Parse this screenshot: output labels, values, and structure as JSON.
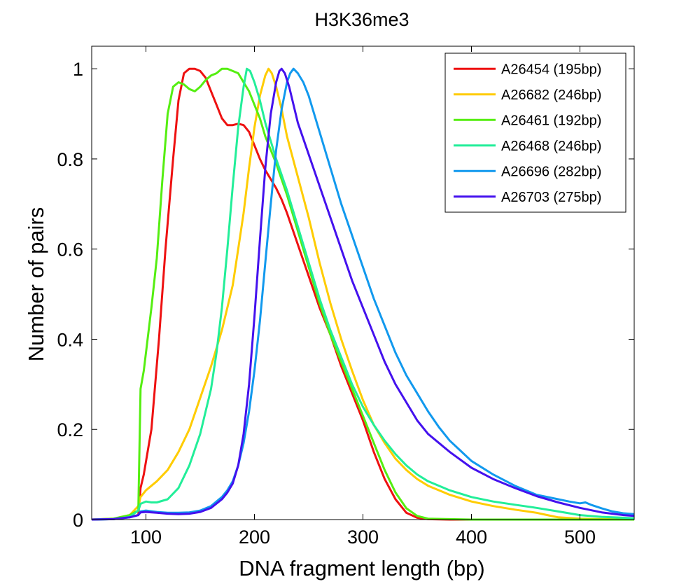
{
  "chart_data": {
    "type": "line",
    "title": "H3K36me3",
    "xlabel": "DNA fragment length (bp)",
    "ylabel": "Number of pairs",
    "xlim": [
      50,
      550
    ],
    "ylim": [
      0,
      1.05
    ],
    "xticks": [
      100,
      200,
      300,
      400,
      500
    ],
    "xtick_labels": [
      "100",
      "200",
      "300",
      "400",
      "500"
    ],
    "yticks": [
      0,
      0.2,
      0.4,
      0.6,
      0.8,
      1
    ],
    "ytick_labels": [
      "0",
      "0.2",
      "0.4",
      "0.6",
      "0.8",
      "1"
    ],
    "grid": false,
    "legend_position": "top-right",
    "series": [
      {
        "name": "A26454 (195bp)",
        "color": "#ee1111",
        "points": [
          [
            50,
            0
          ],
          [
            70,
            0.002
          ],
          [
            85,
            0.006
          ],
          [
            93,
            0.01
          ],
          [
            95,
            0.07
          ],
          [
            98,
            0.1
          ],
          [
            105,
            0.2
          ],
          [
            112,
            0.4
          ],
          [
            118,
            0.6
          ],
          [
            125,
            0.8
          ],
          [
            130,
            0.93
          ],
          [
            135,
            0.99
          ],
          [
            140,
            1.0
          ],
          [
            145,
            1.0
          ],
          [
            150,
            0.995
          ],
          [
            155,
            0.98
          ],
          [
            160,
            0.95
          ],
          [
            165,
            0.92
          ],
          [
            170,
            0.89
          ],
          [
            175,
            0.875
          ],
          [
            180,
            0.875
          ],
          [
            185,
            0.878
          ],
          [
            190,
            0.875
          ],
          [
            195,
            0.86
          ],
          [
            200,
            0.83
          ],
          [
            205,
            0.8
          ],
          [
            210,
            0.775
          ],
          [
            215,
            0.755
          ],
          [
            220,
            0.735
          ],
          [
            225,
            0.71
          ],
          [
            230,
            0.68
          ],
          [
            240,
            0.61
          ],
          [
            250,
            0.54
          ],
          [
            260,
            0.47
          ],
          [
            270,
            0.41
          ],
          [
            280,
            0.34
          ],
          [
            290,
            0.28
          ],
          [
            300,
            0.22
          ],
          [
            310,
            0.15
          ],
          [
            320,
            0.09
          ],
          [
            330,
            0.045
          ],
          [
            340,
            0.015
          ],
          [
            350,
            0.004
          ],
          [
            360,
            0.001
          ],
          [
            380,
            0
          ],
          [
            550,
            0
          ]
        ]
      },
      {
        "name": "A26682 (246bp)",
        "color": "#ffcc00",
        "points": [
          [
            50,
            0
          ],
          [
            70,
            0.002
          ],
          [
            85,
            0.01
          ],
          [
            93,
            0.03
          ],
          [
            95,
            0.05
          ],
          [
            100,
            0.065
          ],
          [
            110,
            0.085
          ],
          [
            120,
            0.11
          ],
          [
            130,
            0.15
          ],
          [
            140,
            0.2
          ],
          [
            150,
            0.27
          ],
          [
            160,
            0.34
          ],
          [
            170,
            0.42
          ],
          [
            175,
            0.47
          ],
          [
            180,
            0.52
          ],
          [
            185,
            0.6
          ],
          [
            190,
            0.68
          ],
          [
            195,
            0.78
          ],
          [
            200,
            0.87
          ],
          [
            205,
            0.94
          ],
          [
            210,
            0.985
          ],
          [
            213,
            1.0
          ],
          [
            216,
            0.99
          ],
          [
            220,
            0.96
          ],
          [
            225,
            0.91
          ],
          [
            230,
            0.85
          ],
          [
            240,
            0.76
          ],
          [
            250,
            0.67
          ],
          [
            260,
            0.57
          ],
          [
            270,
            0.48
          ],
          [
            280,
            0.4
          ],
          [
            290,
            0.33
          ],
          [
            300,
            0.265
          ],
          [
            310,
            0.21
          ],
          [
            320,
            0.17
          ],
          [
            330,
            0.135
          ],
          [
            340,
            0.11
          ],
          [
            350,
            0.09
          ],
          [
            360,
            0.075
          ],
          [
            380,
            0.055
          ],
          [
            400,
            0.04
          ],
          [
            420,
            0.03
          ],
          [
            440,
            0.022
          ],
          [
            460,
            0.015
          ],
          [
            470,
            0.01
          ],
          [
            480,
            0.005
          ],
          [
            500,
            0.002
          ],
          [
            520,
            0.001
          ],
          [
            550,
            0
          ]
        ]
      },
      {
        "name": "A26461 (192bp)",
        "color": "#55ee11",
        "points": [
          [
            50,
            0
          ],
          [
            70,
            0.002
          ],
          [
            85,
            0.01
          ],
          [
            93,
            0.02
          ],
          [
            95,
            0.29
          ],
          [
            98,
            0.33
          ],
          [
            105,
            0.47
          ],
          [
            110,
            0.58
          ],
          [
            115,
            0.75
          ],
          [
            120,
            0.9
          ],
          [
            125,
            0.96
          ],
          [
            130,
            0.97
          ],
          [
            135,
            0.965
          ],
          [
            140,
            0.955
          ],
          [
            145,
            0.95
          ],
          [
            150,
            0.96
          ],
          [
            155,
            0.975
          ],
          [
            160,
            0.985
          ],
          [
            165,
            0.99
          ],
          [
            170,
            1.0
          ],
          [
            175,
            1.0
          ],
          [
            180,
            0.995
          ],
          [
            185,
            0.99
          ],
          [
            190,
            0.97
          ],
          [
            195,
            0.95
          ],
          [
            200,
            0.92
          ],
          [
            205,
            0.89
          ],
          [
            210,
            0.85
          ],
          [
            220,
            0.79
          ],
          [
            230,
            0.72
          ],
          [
            240,
            0.64
          ],
          [
            250,
            0.56
          ],
          [
            260,
            0.48
          ],
          [
            270,
            0.41
          ],
          [
            280,
            0.35
          ],
          [
            290,
            0.29
          ],
          [
            300,
            0.23
          ],
          [
            310,
            0.17
          ],
          [
            320,
            0.11
          ],
          [
            330,
            0.06
          ],
          [
            340,
            0.025
          ],
          [
            350,
            0.008
          ],
          [
            360,
            0.002
          ],
          [
            380,
            0.001
          ],
          [
            400,
            0
          ],
          [
            550,
            0
          ]
        ]
      },
      {
        "name": "A26468 (246bp)",
        "color": "#22ee99",
        "points": [
          [
            50,
            0
          ],
          [
            70,
            0.001
          ],
          [
            85,
            0.006
          ],
          [
            93,
            0.02
          ],
          [
            95,
            0.035
          ],
          [
            100,
            0.04
          ],
          [
            105,
            0.038
          ],
          [
            110,
            0.038
          ],
          [
            120,
            0.045
          ],
          [
            130,
            0.07
          ],
          [
            140,
            0.12
          ],
          [
            150,
            0.19
          ],
          [
            160,
            0.29
          ],
          [
            165,
            0.37
          ],
          [
            170,
            0.47
          ],
          [
            175,
            0.6
          ],
          [
            180,
            0.74
          ],
          [
            185,
            0.87
          ],
          [
            190,
            0.96
          ],
          [
            193,
            1.0
          ],
          [
            196,
            0.995
          ],
          [
            200,
            0.97
          ],
          [
            205,
            0.93
          ],
          [
            210,
            0.88
          ],
          [
            220,
            0.8
          ],
          [
            230,
            0.73
          ],
          [
            240,
            0.65
          ],
          [
            250,
            0.57
          ],
          [
            260,
            0.49
          ],
          [
            270,
            0.42
          ],
          [
            280,
            0.36
          ],
          [
            290,
            0.3
          ],
          [
            300,
            0.25
          ],
          [
            310,
            0.21
          ],
          [
            320,
            0.175
          ],
          [
            330,
            0.145
          ],
          [
            340,
            0.12
          ],
          [
            350,
            0.1
          ],
          [
            360,
            0.085
          ],
          [
            380,
            0.065
          ],
          [
            400,
            0.05
          ],
          [
            420,
            0.04
          ],
          [
            440,
            0.033
          ],
          [
            460,
            0.026
          ],
          [
            480,
            0.018
          ],
          [
            500,
            0.01
          ],
          [
            520,
            0.006
          ],
          [
            550,
            0.003
          ]
        ]
      },
      {
        "name": "A26696 (282bp)",
        "color": "#1199ee",
        "points": [
          [
            50,
            0
          ],
          [
            70,
            0.001
          ],
          [
            85,
            0.005
          ],
          [
            93,
            0.01
          ],
          [
            95,
            0.018
          ],
          [
            100,
            0.02
          ],
          [
            110,
            0.017
          ],
          [
            120,
            0.015
          ],
          [
            130,
            0.015
          ],
          [
            140,
            0.016
          ],
          [
            150,
            0.02
          ],
          [
            160,
            0.03
          ],
          [
            170,
            0.05
          ],
          [
            175,
            0.065
          ],
          [
            180,
            0.085
          ],
          [
            185,
            0.12
          ],
          [
            190,
            0.17
          ],
          [
            195,
            0.24
          ],
          [
            200,
            0.33
          ],
          [
            205,
            0.44
          ],
          [
            210,
            0.57
          ],
          [
            215,
            0.7
          ],
          [
            220,
            0.82
          ],
          [
            225,
            0.91
          ],
          [
            230,
            0.97
          ],
          [
            233,
            0.99
          ],
          [
            236,
            1.0
          ],
          [
            240,
            0.99
          ],
          [
            245,
            0.97
          ],
          [
            250,
            0.94
          ],
          [
            260,
            0.86
          ],
          [
            270,
            0.78
          ],
          [
            280,
            0.7
          ],
          [
            290,
            0.63
          ],
          [
            300,
            0.56
          ],
          [
            310,
            0.49
          ],
          [
            320,
            0.43
          ],
          [
            330,
            0.37
          ],
          [
            340,
            0.32
          ],
          [
            350,
            0.28
          ],
          [
            360,
            0.24
          ],
          [
            370,
            0.205
          ],
          [
            380,
            0.175
          ],
          [
            400,
            0.13
          ],
          [
            420,
            0.1
          ],
          [
            440,
            0.075
          ],
          [
            460,
            0.055
          ],
          [
            480,
            0.045
          ],
          [
            490,
            0.04
          ],
          [
            500,
            0.036
          ],
          [
            505,
            0.038
          ],
          [
            510,
            0.033
          ],
          [
            520,
            0.025
          ],
          [
            530,
            0.018
          ],
          [
            540,
            0.014
          ],
          [
            550,
            0.012
          ]
        ]
      },
      {
        "name": "A26703 (275bp)",
        "color": "#4411ee",
        "points": [
          [
            50,
            0
          ],
          [
            70,
            0.001
          ],
          [
            85,
            0.005
          ],
          [
            93,
            0.01
          ],
          [
            95,
            0.016
          ],
          [
            100,
            0.017
          ],
          [
            110,
            0.015
          ],
          [
            120,
            0.013
          ],
          [
            130,
            0.012
          ],
          [
            140,
            0.013
          ],
          [
            150,
            0.017
          ],
          [
            160,
            0.026
          ],
          [
            170,
            0.045
          ],
          [
            175,
            0.06
          ],
          [
            180,
            0.08
          ],
          [
            185,
            0.12
          ],
          [
            190,
            0.19
          ],
          [
            195,
            0.3
          ],
          [
            200,
            0.45
          ],
          [
            205,
            0.62
          ],
          [
            210,
            0.78
          ],
          [
            215,
            0.9
          ],
          [
            220,
            0.97
          ],
          [
            223,
            0.995
          ],
          [
            225,
            1.0
          ],
          [
            228,
            0.99
          ],
          [
            232,
            0.96
          ],
          [
            236,
            0.92
          ],
          [
            240,
            0.88
          ],
          [
            250,
            0.81
          ],
          [
            260,
            0.74
          ],
          [
            270,
            0.67
          ],
          [
            280,
            0.6
          ],
          [
            290,
            0.53
          ],
          [
            300,
            0.47
          ],
          [
            310,
            0.41
          ],
          [
            320,
            0.35
          ],
          [
            330,
            0.3
          ],
          [
            340,
            0.26
          ],
          [
            350,
            0.22
          ],
          [
            360,
            0.19
          ],
          [
            380,
            0.15
          ],
          [
            400,
            0.115
          ],
          [
            420,
            0.09
          ],
          [
            440,
            0.07
          ],
          [
            460,
            0.052
          ],
          [
            480,
            0.038
          ],
          [
            500,
            0.026
          ],
          [
            520,
            0.016
          ],
          [
            540,
            0.01
          ],
          [
            550,
            0.008
          ]
        ]
      }
    ]
  }
}
